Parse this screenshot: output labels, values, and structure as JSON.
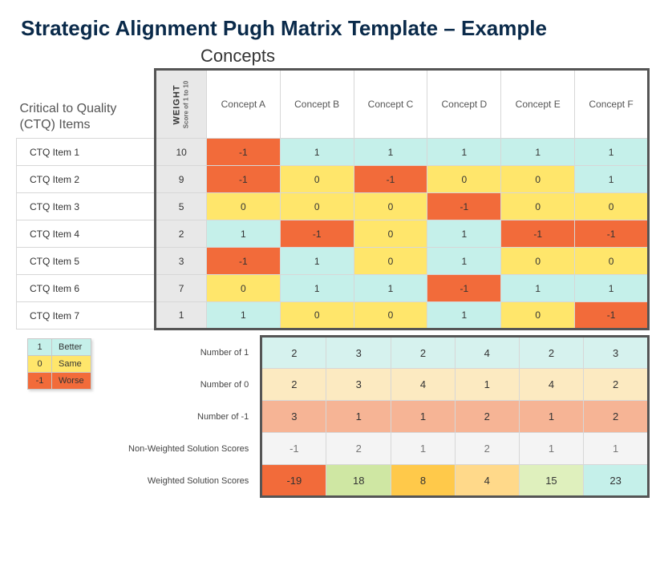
{
  "title": "Strategic Alignment Pugh Matrix Template – Example",
  "concepts_label": "Concepts",
  "ctq_label_line1": "Critical to Quality",
  "ctq_label_line2": "(CTQ) Items",
  "weight_label": "WEIGHT",
  "weight_sub": "Score of 1 to 10",
  "colors": {
    "better": "#c5f0ea",
    "same": "#ffe66b",
    "worse": "#f26b3a",
    "sum_better": "#d6f2ee",
    "sum_same": "#fceac1",
    "sum_worse": "#f6b495",
    "border_dark": "#555555",
    "border_light": "#d7d7d7",
    "weight_bg": "#e8e8e8"
  },
  "legend": [
    {
      "value": "1",
      "label": "Better",
      "bg": "#c5f0ea"
    },
    {
      "value": "0",
      "label": "Same",
      "bg": "#ffe66b"
    },
    {
      "value": "-1",
      "label": "Worse",
      "bg": "#f26b3a"
    }
  ],
  "concepts": [
    "Concept A",
    "Concept B",
    "Concept C",
    "Concept D",
    "Concept E",
    "Concept F"
  ],
  "rows": [
    {
      "name": "CTQ Item 1",
      "weight": 10,
      "scores": [
        -1,
        1,
        1,
        1,
        1,
        1
      ]
    },
    {
      "name": "CTQ Item 2",
      "weight": 9,
      "scores": [
        -1,
        0,
        -1,
        0,
        0,
        1
      ]
    },
    {
      "name": "CTQ Item 3",
      "weight": 5,
      "scores": [
        0,
        0,
        0,
        -1,
        0,
        0
      ]
    },
    {
      "name": "CTQ Item 4",
      "weight": 2,
      "scores": [
        1,
        -1,
        0,
        1,
        -1,
        -1
      ]
    },
    {
      "name": "CTQ Item 5",
      "weight": 3,
      "scores": [
        -1,
        1,
        0,
        1,
        0,
        0
      ]
    },
    {
      "name": "CTQ Item 6",
      "weight": 7,
      "scores": [
        0,
        1,
        1,
        -1,
        1,
        1
      ]
    },
    {
      "name": "CTQ Item 7",
      "weight": 1,
      "scores": [
        1,
        0,
        0,
        1,
        0,
        -1
      ]
    }
  ],
  "summary": {
    "count1": {
      "label": "Number of 1",
      "values": [
        2,
        3,
        2,
        4,
        2,
        3
      ],
      "bg": "#d6f2ee"
    },
    "count0": {
      "label": "Number of 0",
      "values": [
        2,
        3,
        4,
        1,
        4,
        2
      ],
      "bg": "#fceac1"
    },
    "countm1": {
      "label": "Number of -1",
      "values": [
        3,
        1,
        1,
        2,
        1,
        2
      ],
      "bg": "#f6b495"
    },
    "nonweighted": {
      "label": "Non-Weighted Solution Scores",
      "values": [
        -1,
        2,
        1,
        2,
        1,
        1
      ]
    },
    "weighted": {
      "label": "Weighted Solution Scores",
      "values": [
        -19,
        18,
        8,
        4,
        15,
        23
      ],
      "cell_bg": [
        "#f26b3a",
        "#cfe7a3",
        "#ffc94a",
        "#ffd98a",
        "#dff0bd",
        "#c5f0ea"
      ]
    }
  }
}
